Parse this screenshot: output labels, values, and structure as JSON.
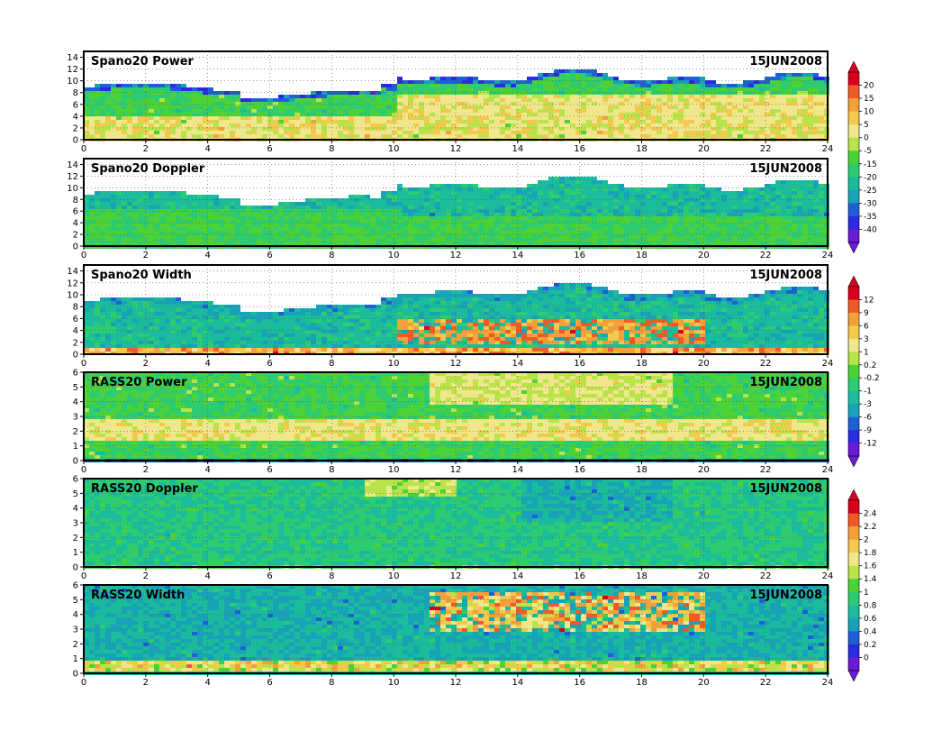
{
  "chart_data": {
    "type": "heatmap",
    "date": "15JUN2008",
    "x_ticks": [
      "0",
      "2",
      "4",
      "6",
      "8",
      "10",
      "12",
      "14",
      "16",
      "18",
      "20",
      "22",
      "24"
    ],
    "panels": [
      {
        "title": "Spano20  Power",
        "date": "15JUN2008",
        "xlim": [
          0,
          24
        ],
        "ylim": [
          0,
          15
        ],
        "y_ticks": [
          "0",
          "2",
          "4",
          "6",
          "8",
          "10",
          "12",
          "14"
        ],
        "scale": 0
      },
      {
        "title": "Spano20  Doppler",
        "date": "15JUN2008",
        "xlim": [
          0,
          24
        ],
        "ylim": [
          0,
          15
        ],
        "y_ticks": [
          "0",
          "2",
          "4",
          "6",
          "8",
          "10",
          "12",
          "14"
        ],
        "scale": 0
      },
      {
        "title": "Spano20  Width",
        "date": "15JUN2008",
        "xlim": [
          0,
          24
        ],
        "ylim": [
          0,
          15
        ],
        "y_ticks": [
          "0",
          "2",
          "4",
          "6",
          "8",
          "10",
          "12",
          "14"
        ],
        "scale": 1
      },
      {
        "title": "RASS20  Power",
        "date": "15JUN2008",
        "xlim": [
          0,
          24
        ],
        "ylim": [
          0,
          6
        ],
        "y_ticks": [
          "0",
          "1",
          "2",
          "3",
          "4",
          "5",
          "6"
        ],
        "scale": 1
      },
      {
        "title": "RASS20  Doppler",
        "date": "15JUN2008",
        "xlim": [
          0,
          24
        ],
        "ylim": [
          0,
          6
        ],
        "y_ticks": [
          "0",
          "1",
          "2",
          "3",
          "4",
          "5",
          "6"
        ],
        "scale": 2
      },
      {
        "title": "RASS20  Width",
        "date": "15JUN2008",
        "xlim": [
          0,
          24
        ],
        "ylim": [
          0,
          6
        ],
        "y_ticks": [
          "0",
          "1",
          "2",
          "3",
          "4",
          "5",
          "6"
        ],
        "scale": 2
      }
    ],
    "colorbars": [
      {
        "labels": [
          "20",
          "15",
          "10",
          "5",
          "0",
          "-5",
          "-15",
          "-20",
          "-25",
          "-30",
          "-35",
          "-40"
        ]
      },
      {
        "labels": [
          "12",
          "9",
          "6",
          "3",
          "1",
          "0.2",
          "-0.2",
          "-1",
          "-3",
          "-6",
          "-9",
          "-12"
        ]
      },
      {
        "labels": [
          "2.4",
          "2.2",
          "2",
          "1.8",
          "1.6",
          "1.4",
          "1",
          "0.8",
          "0.6",
          "0.4",
          "0.2",
          "0"
        ]
      }
    ],
    "colors": [
      "#d6001c",
      "#f05a28",
      "#f3a03a",
      "#f2c94c",
      "#f0e68c",
      "#b8e44a",
      "#4cd137",
      "#2ecc71",
      "#1abc9c",
      "#17a2b8",
      "#1e5fd6",
      "#2a2ae0",
      "#6a1bd6"
    ],
    "grid": "dotted"
  }
}
